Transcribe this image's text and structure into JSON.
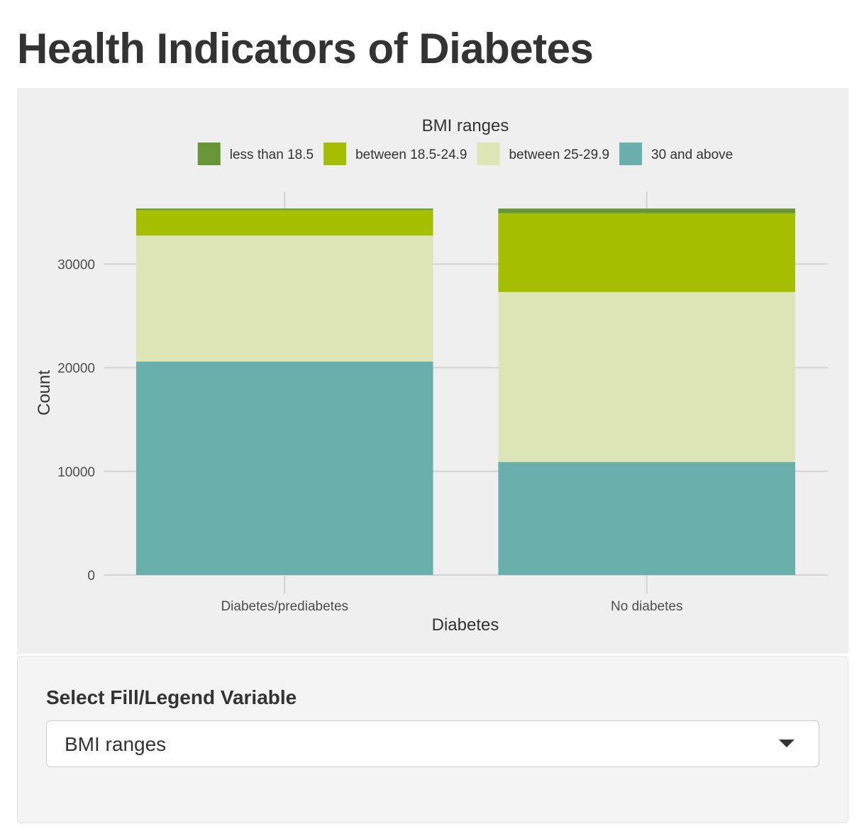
{
  "page": {
    "title": "Health Indicators of Diabetes"
  },
  "controls": {
    "label": "Select Fill/Legend Variable",
    "selected": "BMI ranges",
    "caret_icon": "chevron-down-icon"
  },
  "chart_data": {
    "type": "bar",
    "stacked": true,
    "title": "",
    "xlabel": "Diabetes",
    "ylabel": "Count",
    "legend_title": "BMI ranges",
    "legend_position": "top",
    "grid": true,
    "categories": [
      "Diabetes/prediabetes",
      "No diabetes"
    ],
    "yticks": [
      0,
      10000,
      20000,
      30000
    ],
    "ylim": [
      0,
      37000
    ],
    "series": [
      {
        "name": "30 and above",
        "color": "#69afac",
        "values": [
          20600,
          10900
        ]
      },
      {
        "name": "between 25-29.9",
        "color": "#dde5b6",
        "values": [
          12150,
          16400
        ]
      },
      {
        "name": "between 18.5-24.9",
        "color": "#a5bf00",
        "values": [
          2450,
          7600
        ]
      },
      {
        "name": "less than 18.5",
        "color": "#689636",
        "values": [
          150,
          450
        ]
      }
    ],
    "legend_order": [
      "less than 18.5",
      "between 18.5-24.9",
      "between 25-29.9",
      "30 and above"
    ]
  }
}
